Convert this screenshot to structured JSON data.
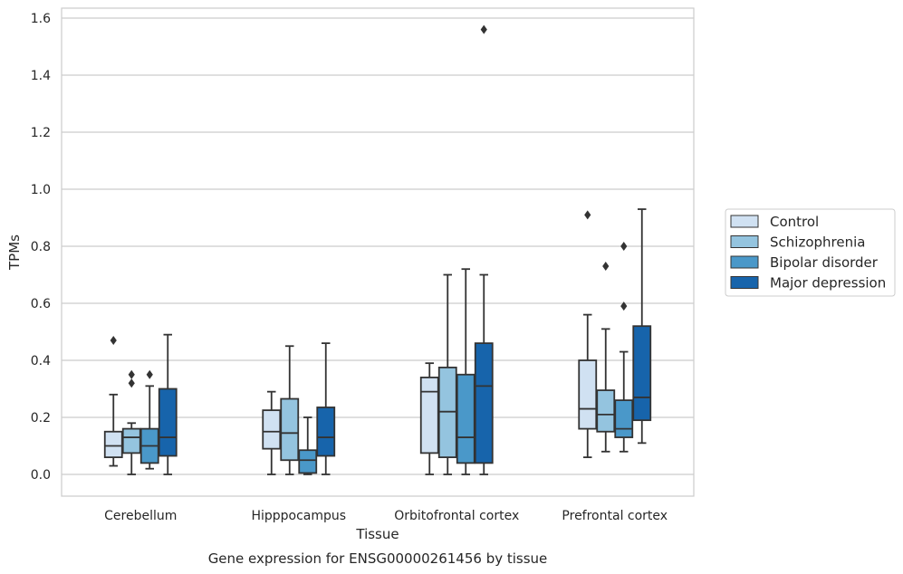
{
  "chart_data": {
    "type": "box",
    "title": "Gene expression for ENSG00000261456 by tissue",
    "xlabel": "Tissue",
    "ylabel": "TPMs",
    "ylim": [
      -0.075,
      1.645
    ],
    "yticks": [
      "0.0",
      "0.2",
      "0.4",
      "0.6",
      "0.8",
      "1.0",
      "1.2",
      "1.4",
      "1.6"
    ],
    "ytick_values": [
      0,
      0.2,
      0.4,
      0.6,
      0.8,
      1.0,
      1.2,
      1.4,
      1.6
    ],
    "grid": true,
    "legend_position": "right",
    "categories": [
      "Cerebellum",
      "Hipppocampus",
      "Orbitofrontal cortex",
      "Prefrontal cortex"
    ],
    "series": [
      {
        "name": "Control",
        "color": "#d0e1f2",
        "boxes": [
          {
            "whislo": 0.03,
            "q1": 0.06,
            "med": 0.1,
            "q3": 0.15,
            "whishi": 0.28,
            "fliers": [
              0.47
            ]
          },
          {
            "whislo": 0.0,
            "q1": 0.09,
            "med": 0.15,
            "q3": 0.225,
            "whishi": 0.29,
            "fliers": []
          },
          {
            "whislo": 0.0,
            "q1": 0.075,
            "med": 0.29,
            "q3": 0.34,
            "whishi": 0.39,
            "fliers": []
          },
          {
            "whislo": 0.06,
            "q1": 0.16,
            "med": 0.23,
            "q3": 0.4,
            "whishi": 0.56,
            "fliers": [
              0.91
            ]
          }
        ]
      },
      {
        "name": "Schizophrenia",
        "color": "#94c4df",
        "boxes": [
          {
            "whislo": 0.0,
            "q1": 0.075,
            "med": 0.13,
            "q3": 0.16,
            "whishi": 0.18,
            "fliers": [
              0.32,
              0.35
            ]
          },
          {
            "whislo": 0.0,
            "q1": 0.05,
            "med": 0.145,
            "q3": 0.265,
            "whishi": 0.45,
            "fliers": []
          },
          {
            "whislo": 0.0,
            "q1": 0.06,
            "med": 0.22,
            "q3": 0.375,
            "whishi": 0.7,
            "fliers": []
          },
          {
            "whislo": 0.08,
            "q1": 0.15,
            "med": 0.21,
            "q3": 0.295,
            "whishi": 0.51,
            "fliers": [
              0.73
            ]
          }
        ]
      },
      {
        "name": "Bipolar disorder",
        "color": "#4a98c9",
        "boxes": [
          {
            "whislo": 0.02,
            "q1": 0.04,
            "med": 0.1,
            "q3": 0.16,
            "whishi": 0.31,
            "fliers": [
              0.35
            ]
          },
          {
            "whislo": 0.0,
            "q1": 0.005,
            "med": 0.05,
            "q3": 0.085,
            "whishi": 0.2,
            "fliers": []
          },
          {
            "whislo": 0.0,
            "q1": 0.04,
            "med": 0.13,
            "q3": 0.35,
            "whishi": 0.72,
            "fliers": []
          },
          {
            "whislo": 0.08,
            "q1": 0.13,
            "med": 0.16,
            "q3": 0.26,
            "whishi": 0.43,
            "fliers": [
              0.59,
              0.8
            ]
          }
        ]
      },
      {
        "name": "Major depression",
        "color": "#1764ab",
        "boxes": [
          {
            "whislo": 0.0,
            "q1": 0.065,
            "med": 0.13,
            "q3": 0.3,
            "whishi": 0.49,
            "fliers": []
          },
          {
            "whislo": 0.0,
            "q1": 0.065,
            "med": 0.13,
            "q3": 0.235,
            "whishi": 0.46,
            "fliers": []
          },
          {
            "whislo": 0.0,
            "q1": 0.04,
            "med": 0.31,
            "q3": 0.46,
            "whishi": 0.7,
            "fliers": [
              1.56
            ]
          },
          {
            "whislo": 0.11,
            "q1": 0.19,
            "med": 0.27,
            "q3": 0.52,
            "whishi": 0.93,
            "fliers": []
          }
        ]
      }
    ]
  }
}
